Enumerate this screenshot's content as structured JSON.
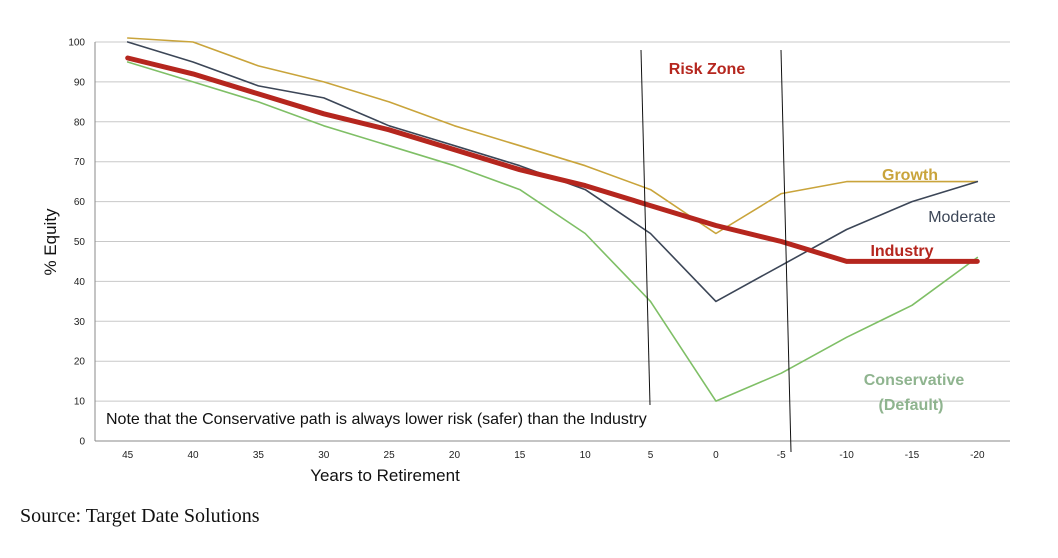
{
  "chart_data": {
    "type": "line",
    "title": "",
    "xlabel": "Years to Retirement",
    "ylabel": "% Equity",
    "ylim": [
      0,
      100
    ],
    "yticks": [
      0,
      10,
      20,
      30,
      40,
      50,
      60,
      70,
      80,
      90,
      100
    ],
    "categories": [
      "45",
      "40",
      "35",
      "30",
      "25",
      "20",
      "15",
      "10",
      "5",
      "0",
      "-5",
      "-10",
      "-15",
      "-20"
    ],
    "grid": "horizontal",
    "series": [
      {
        "name": "Growth",
        "color": "#c9a43b",
        "values": [
          101,
          100,
          94,
          90,
          85,
          79,
          74,
          69,
          63,
          52,
          62,
          65,
          65,
          65
        ]
      },
      {
        "name": "Moderate",
        "color": "#3c4657",
        "values": [
          100,
          95,
          89,
          86,
          79,
          74,
          69,
          63,
          52,
          35,
          44,
          53,
          60,
          65
        ]
      },
      {
        "name": "Industry",
        "color": "#b5261e",
        "values": [
          96,
          92,
          87,
          82,
          78,
          73,
          68,
          64,
          59,
          54,
          50,
          45,
          45,
          45
        ]
      },
      {
        "name": "Conservative (Default)",
        "color": "#7fbf66",
        "values": [
          95,
          90,
          85,
          79,
          74,
          69,
          63,
          52,
          35,
          10,
          17,
          26,
          34,
          46
        ]
      }
    ],
    "annotations": {
      "risk_zone": "Risk Zone",
      "note": "Note that the Conservative path is always lower risk (safer) than the Industry",
      "labels": {
        "growth": "Growth",
        "moderate": "Moderate",
        "industry": "Industry",
        "conservative_1": "Conservative",
        "conservative_2": "(Default)"
      }
    }
  },
  "source": "Source: Target Date Solutions"
}
